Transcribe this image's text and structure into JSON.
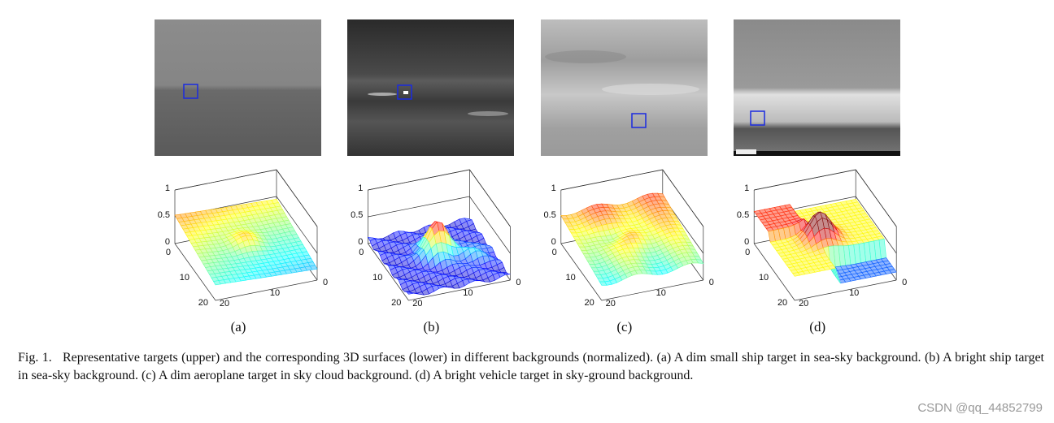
{
  "figure": {
    "panels": [
      {
        "label": "(a)",
        "z_ticks": [
          "1",
          "0.5",
          "0"
        ],
        "row_ticks": [
          "0",
          "10",
          "20"
        ],
        "col_ticks": [
          "20",
          "10",
          "0"
        ]
      },
      {
        "label": "(b)",
        "z_ticks": [
          "1",
          "0.5",
          "0"
        ],
        "row_ticks": [
          "0",
          "10",
          "20"
        ],
        "col_ticks": [
          "20",
          "10",
          "0"
        ]
      },
      {
        "label": "(c)",
        "z_ticks": [
          "1",
          "0.5",
          "0"
        ],
        "row_ticks": [
          "0",
          "10",
          "20"
        ],
        "col_ticks": [
          "20",
          "10",
          "0"
        ]
      },
      {
        "label": "(d)",
        "z_ticks": [
          "1",
          "0.5",
          "0"
        ],
        "row_ticks": [
          "0",
          "10",
          "20"
        ],
        "col_ticks": [
          "20",
          "10",
          "0"
        ]
      }
    ],
    "caption": "Fig. 1.   Representative targets (upper) and the corresponding 3D surfaces (lower) in different backgrounds (normalized). (a) A dim small ship target in sea-sky background. (b) A bright ship target in sea-sky background. (c) A dim aeroplane target in sky cloud background. (d) A bright vehicle target in sky-ground background.",
    "watermark": "CSDN @qq_44852799"
  }
}
